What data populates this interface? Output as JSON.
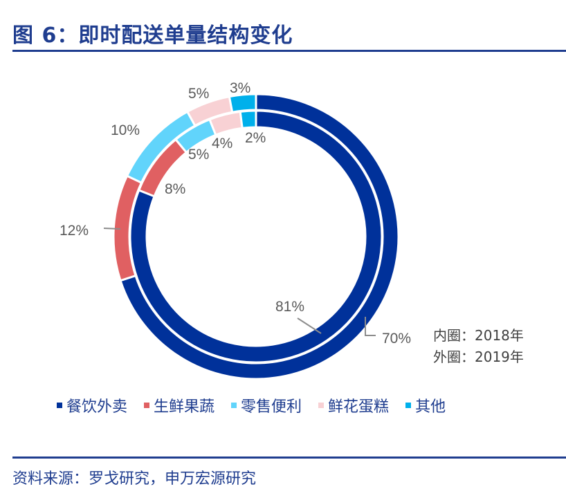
{
  "title": "图 6：即时配送单量结构变化",
  "source": "资料来源：罗戈研究，申万宏源研究",
  "chart_data": {
    "type": "pie",
    "subtype": "double-donut",
    "categories": [
      "餐饮外卖",
      "生鲜果蔬",
      "零售便利",
      "鲜花蛋糕",
      "其他"
    ],
    "colors": [
      "#00319a",
      "#e06062",
      "#61d4fb",
      "#f8d1d4",
      "#00b0eb"
    ],
    "series": [
      {
        "name": "内圈：2018年",
        "ring": "inner",
        "values": [
          81,
          8,
          5,
          4,
          2
        ]
      },
      {
        "name": "外圈：2019年",
        "ring": "outer",
        "values": [
          70,
          12,
          10,
          5,
          3
        ]
      }
    ],
    "legend_position": "bottom"
  }
}
